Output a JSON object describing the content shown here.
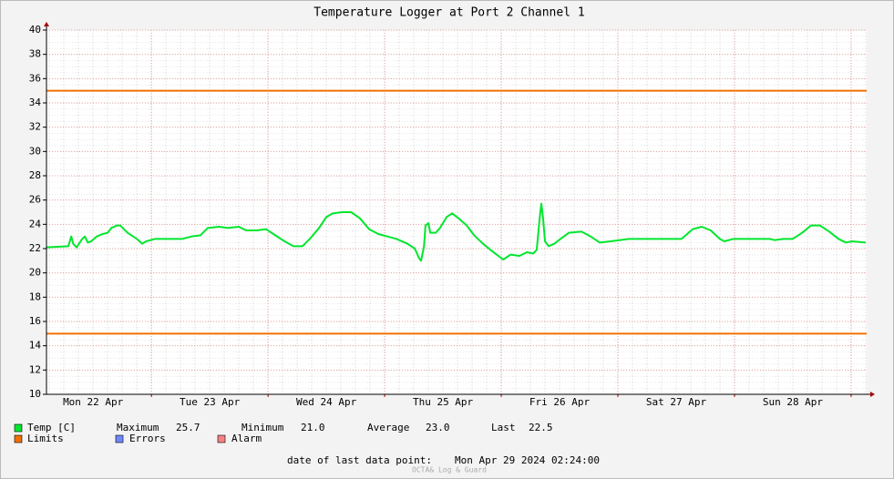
{
  "chart_data": {
    "type": "line",
    "title": "Temperature Logger at Port 2 Channel 1",
    "x": [
      2.4,
      6.9,
      7.5,
      7.9,
      8.6,
      9.75,
      10.3,
      10.9,
      11.6,
      12.75,
      13.9,
      15,
      15.75,
      16.9,
      17.6,
      19.1,
      21,
      22.1,
      22.9,
      24.75,
      26.6,
      28.5,
      30.4,
      32.25,
      34.1,
      35.6,
      37.9,
      39.75,
      42,
      43.5,
      45.75,
      47.6,
      49.1,
      51.4,
      53.25,
      55.1,
      56.6,
      58.5,
      60,
      61.3,
      63.2,
      65.1,
      66.9,
      68.8,
      70.7,
      72.6,
      74.4,
      76.7,
      78.2,
      79.1,
      79.5,
      80.1,
      80.4,
      81,
      81.4,
      82.5,
      83.4,
      84.75,
      85.9,
      87.2,
      88.9,
      90.4,
      92.25,
      94.1,
      96.4,
      97.9,
      99.75,
      101.25,
      102.6,
      103.3,
      103.9,
      104.25,
      104.6,
      105,
      105.75,
      106.9,
      108.2,
      109.9,
      112.5,
      114.4,
      116.25,
      118.5,
      122.25,
      126,
      129.75,
      133.1,
      135.4,
      137.25,
      139.1,
      141,
      141.9,
      143.8,
      146.6,
      149.4,
      151.3,
      152.25,
      154.1,
      156,
      157.9,
      159.75,
      161.6,
      163.5,
      165.4,
      166.9,
      168.2,
      171
    ],
    "series": [
      {
        "name": "Temp [C]",
        "color": "#00e62e",
        "values": [
          22.1,
          22.2,
          23.0,
          22.4,
          22.1,
          22.8,
          23.0,
          22.5,
          22.6,
          23.0,
          23.2,
          23.3,
          23.7,
          23.9,
          23.9,
          23.3,
          22.8,
          22.4,
          22.6,
          22.8,
          22.8,
          22.8,
          22.8,
          23.0,
          23.1,
          23.7,
          23.8,
          23.7,
          23.8,
          23.5,
          23.5,
          23.6,
          23.2,
          22.6,
          22.2,
          22.2,
          22.8,
          23.7,
          24.6,
          24.9,
          25.0,
          25.0,
          24.5,
          23.6,
          23.2,
          23.0,
          22.8,
          22.4,
          22.0,
          21.2,
          21.0,
          22.2,
          23.9,
          24.1,
          23.3,
          23.3,
          23.7,
          24.6,
          24.9,
          24.5,
          23.9,
          23.1,
          22.4,
          21.8,
          21.1,
          21.5,
          21.4,
          21.7,
          21.6,
          21.9,
          24.5,
          25.7,
          24.5,
          22.6,
          22.2,
          22.4,
          22.8,
          23.3,
          23.4,
          23.0,
          22.5,
          22.6,
          22.8,
          22.8,
          22.8,
          22.8,
          23.6,
          23.8,
          23.5,
          22.8,
          22.6,
          22.8,
          22.8,
          22.8,
          22.8,
          22.7,
          22.8,
          22.8,
          23.3,
          23.9,
          23.9,
          23.4,
          22.8,
          22.5,
          22.6,
          22.5
        ]
      }
    ],
    "limit_lines": {
      "name": "Limits",
      "color": "#f07000",
      "values": [
        35,
        15
      ]
    },
    "legend_extra": [
      {
        "name": "Errors",
        "color": "#7088f8"
      },
      {
        "name": "Alarm",
        "color": "#f88080"
      }
    ],
    "stats": [
      {
        "label": "Maximum",
        "value": 25.7
      },
      {
        "label": "Minimum",
        "value": 21,
        "value_label": "21.0"
      },
      {
        "label": "Average",
        "value": 23,
        "value_label": "23.0"
      },
      {
        "label": "Last",
        "value": 22.5
      }
    ],
    "xlim": [
      2.4,
      171.2
    ],
    "xticks": [
      {
        "value": 12,
        "label": "Mon 22 Apr"
      },
      {
        "value": 36,
        "label": "Tue 23 Apr"
      },
      {
        "value": 60,
        "label": "Wed 24 Apr"
      },
      {
        "value": 84,
        "label": "Thu 25 Apr"
      },
      {
        "value": 108,
        "label": "Fri 26 Apr"
      },
      {
        "value": 132,
        "label": "Sat 27 Apr"
      },
      {
        "value": 156,
        "label": "Sun 28 Apr"
      }
    ],
    "x_major_grid": [
      24,
      48,
      72,
      96,
      120,
      144,
      168
    ],
    "ylim": [
      10,
      40
    ],
    "yticks": [
      10,
      12,
      14,
      16,
      18,
      20,
      22,
      24,
      26,
      28,
      30,
      32,
      34,
      36,
      38,
      40
    ],
    "grid": true,
    "footer": {
      "label": "date of last data point:",
      "value": "Mon Apr 29 2024 02:24:00"
    },
    "watermark": "OCTA& Log & Guard"
  }
}
